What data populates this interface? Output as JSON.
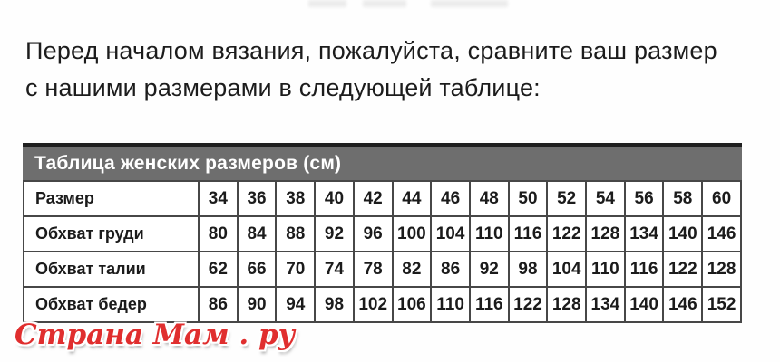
{
  "intro": {
    "line1": "Перед началом вязания, пожалуйста, сравните ваш размер",
    "line2": "с нашими размерами в следующей таблице:"
  },
  "size_table": {
    "title": "Таблица женских размеров (см)",
    "rows": [
      {
        "label": "Размер",
        "values": [
          "34",
          "36",
          "38",
          "40",
          "42",
          "44",
          "46",
          "48",
          "50",
          "52",
          "54",
          "56",
          "58",
          "60"
        ]
      },
      {
        "label": "Обхват груди",
        "values": [
          "80",
          "84",
          "88",
          "92",
          "96",
          "100",
          "104",
          "110",
          "116",
          "122",
          "128",
          "134",
          "140",
          "146"
        ]
      },
      {
        "label": "Обхват талии",
        "values": [
          "62",
          "66",
          "70",
          "74",
          "78",
          "82",
          "86",
          "92",
          "98",
          "104",
          "110",
          "116",
          "122",
          "128"
        ]
      },
      {
        "label": "Обхват бедер",
        "values": [
          "86",
          "90",
          "94",
          "98",
          "102",
          "106",
          "110",
          "116",
          "122",
          "128",
          "134",
          "140",
          "146",
          "152"
        ]
      }
    ]
  },
  "watermark": {
    "text": "Страна Мам . ру",
    "color": "#e02e2e"
  },
  "colors": {
    "table_header_bg": "#6e6e6e",
    "table_header_text": "#ffffff",
    "table_border": "#474747",
    "table_top_border": "#1f1f1f",
    "body_text": "#1c1c1c",
    "watermark_red": "#e02e2e"
  }
}
